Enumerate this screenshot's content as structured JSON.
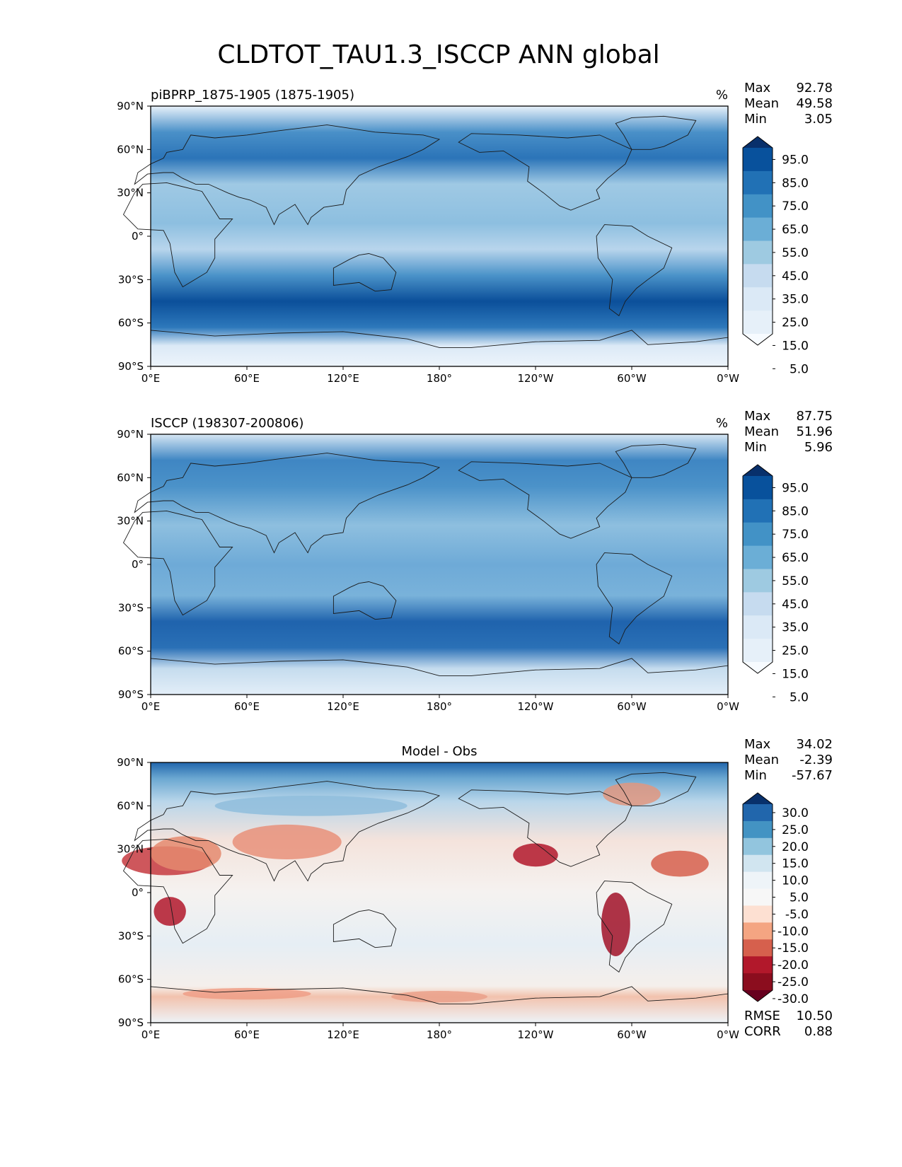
{
  "figure": {
    "title": "CLDTOT_TAU1.3_ISCCP ANN global"
  },
  "chart_data": [
    {
      "type": "heatmap",
      "panel": "test",
      "title_left": "piBPRP_1875-1905 (1875-1905)",
      "title_center": "",
      "units": "%",
      "stats": [
        {
          "label": "Max",
          "value": "92.78"
        },
        {
          "label": "Mean",
          "value": "49.58"
        },
        {
          "label": "Min",
          "value": "3.05"
        }
      ],
      "extra_stats": [],
      "x_ticks": [
        "0°E",
        "60°E",
        "120°E",
        "180°",
        "120°W",
        "60°W",
        "0°W"
      ],
      "y_ticks": [
        "90°N",
        "60°N",
        "30°N",
        "0°",
        "30°S",
        "60°S",
        "90°S"
      ],
      "xlim": [
        0,
        360
      ],
      "ylim": [
        -90,
        90
      ],
      "colorbar": {
        "labels": [
          "95.0",
          "85.0",
          "75.0",
          "65.0",
          "55.0",
          "45.0",
          "35.0",
          "25.0",
          "15.0",
          "5.0"
        ],
        "colors": [
          "#08306b",
          "#08519c",
          "#2171b5",
          "#4292c6",
          "#6baed6",
          "#9ecae1",
          "#c6dbef",
          "#dbe9f6",
          "#e6f0f9",
          "#f7fbff"
        ],
        "extend": "both"
      }
    },
    {
      "type": "heatmap",
      "panel": "reference",
      "title_left": "ISCCP (198307-200806)",
      "title_center": "",
      "units": "%",
      "stats": [
        {
          "label": "Max",
          "value": "87.75"
        },
        {
          "label": "Mean",
          "value": "51.96"
        },
        {
          "label": "Min",
          "value": "5.96"
        }
      ],
      "extra_stats": [],
      "x_ticks": [
        "0°E",
        "60°E",
        "120°E",
        "180°",
        "120°W",
        "60°W",
        "0°W"
      ],
      "y_ticks": [
        "90°N",
        "60°N",
        "30°N",
        "0°",
        "30°S",
        "60°S",
        "90°S"
      ],
      "xlim": [
        0,
        360
      ],
      "ylim": [
        -90,
        90
      ],
      "colorbar": {
        "labels": [
          "95.0",
          "85.0",
          "75.0",
          "65.0",
          "55.0",
          "45.0",
          "35.0",
          "25.0",
          "15.0",
          "5.0"
        ],
        "colors": [
          "#08306b",
          "#08519c",
          "#2171b5",
          "#4292c6",
          "#6baed6",
          "#9ecae1",
          "#c6dbef",
          "#dbe9f6",
          "#e6f0f9",
          "#f7fbff"
        ],
        "extend": "both"
      }
    },
    {
      "type": "heatmap",
      "panel": "difference",
      "title_left": "",
      "title_center": "Model - Obs",
      "units": "",
      "stats": [
        {
          "label": "Max",
          "value": "34.02"
        },
        {
          "label": "Mean",
          "value": "-2.39"
        },
        {
          "label": "Min",
          "value": "-57.67"
        }
      ],
      "extra_stats": [
        {
          "label": "RMSE",
          "value": "10.50"
        },
        {
          "label": "CORR",
          "value": "0.88"
        }
      ],
      "x_ticks": [
        "0°E",
        "60°E",
        "120°E",
        "180°",
        "120°W",
        "60°W",
        "0°W"
      ],
      "y_ticks": [
        "90°N",
        "60°N",
        "30°N",
        "0°",
        "30°S",
        "60°S",
        "90°S"
      ],
      "xlim": [
        0,
        360
      ],
      "ylim": [
        -90,
        90
      ],
      "colorbar": {
        "labels": [
          "30.0",
          "25.0",
          "20.0",
          "15.0",
          "10.0",
          "5.0",
          "-5.0",
          "-10.0",
          "-15.0",
          "-20.0",
          "-25.0",
          "-30.0"
        ],
        "colors": [
          "#08306b",
          "#2166ac",
          "#4393c3",
          "#92c5de",
          "#d1e5f0",
          "#eef4f8",
          "#f7f7f7",
          "#fde0d2",
          "#f4a582",
          "#d6604d",
          "#b2182b",
          "#8b0d1e",
          "#67001f"
        ],
        "extend": "both"
      }
    }
  ]
}
